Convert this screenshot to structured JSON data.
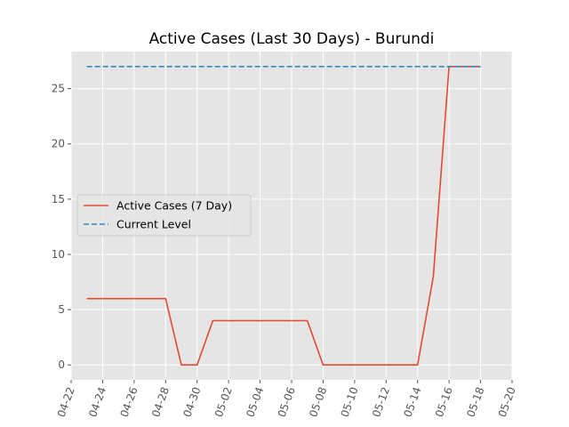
{
  "chart_data": {
    "type": "line",
    "title": "Active Cases (Last 30 Days) - Burundi",
    "xlabel": "",
    "ylabel": "",
    "x_ticks": [
      "04-22",
      "04-24",
      "04-26",
      "04-28",
      "04-30",
      "05-02",
      "05-04",
      "05-06",
      "05-08",
      "05-10",
      "05-12",
      "05-14",
      "05-16",
      "05-18",
      "05-20"
    ],
    "y_ticks": [
      0,
      5,
      10,
      15,
      20,
      25
    ],
    "xlim": [
      "2020-04-22",
      "2020-05-20"
    ],
    "ylim": [
      -1.35,
      28.35
    ],
    "grid": true,
    "legend_position": "center-left",
    "series": [
      {
        "name": "Active Cases (7 Day)",
        "style": "solid",
        "color": "#E24A33",
        "x": [
          "2020-04-23",
          "2020-04-24",
          "2020-04-25",
          "2020-04-26",
          "2020-04-27",
          "2020-04-28",
          "2020-04-29",
          "2020-04-30",
          "2020-05-01",
          "2020-05-02",
          "2020-05-03",
          "2020-05-04",
          "2020-05-05",
          "2020-05-06",
          "2020-05-07",
          "2020-05-08",
          "2020-05-09",
          "2020-05-10",
          "2020-05-11",
          "2020-05-12",
          "2020-05-13",
          "2020-05-14",
          "2020-05-15",
          "2020-05-16",
          "2020-05-17",
          "2020-05-18"
        ],
        "y": [
          6,
          6,
          6,
          6,
          6,
          6,
          0,
          0,
          4,
          4,
          4,
          4,
          4,
          4,
          4,
          0,
          0,
          0,
          0,
          0,
          0,
          0,
          8,
          27,
          27,
          27
        ]
      },
      {
        "name": "Current Level",
        "style": "dashed",
        "color": "#348ABD",
        "x": [
          "2020-04-23",
          "2020-05-18"
        ],
        "y": [
          27,
          27
        ]
      }
    ]
  }
}
